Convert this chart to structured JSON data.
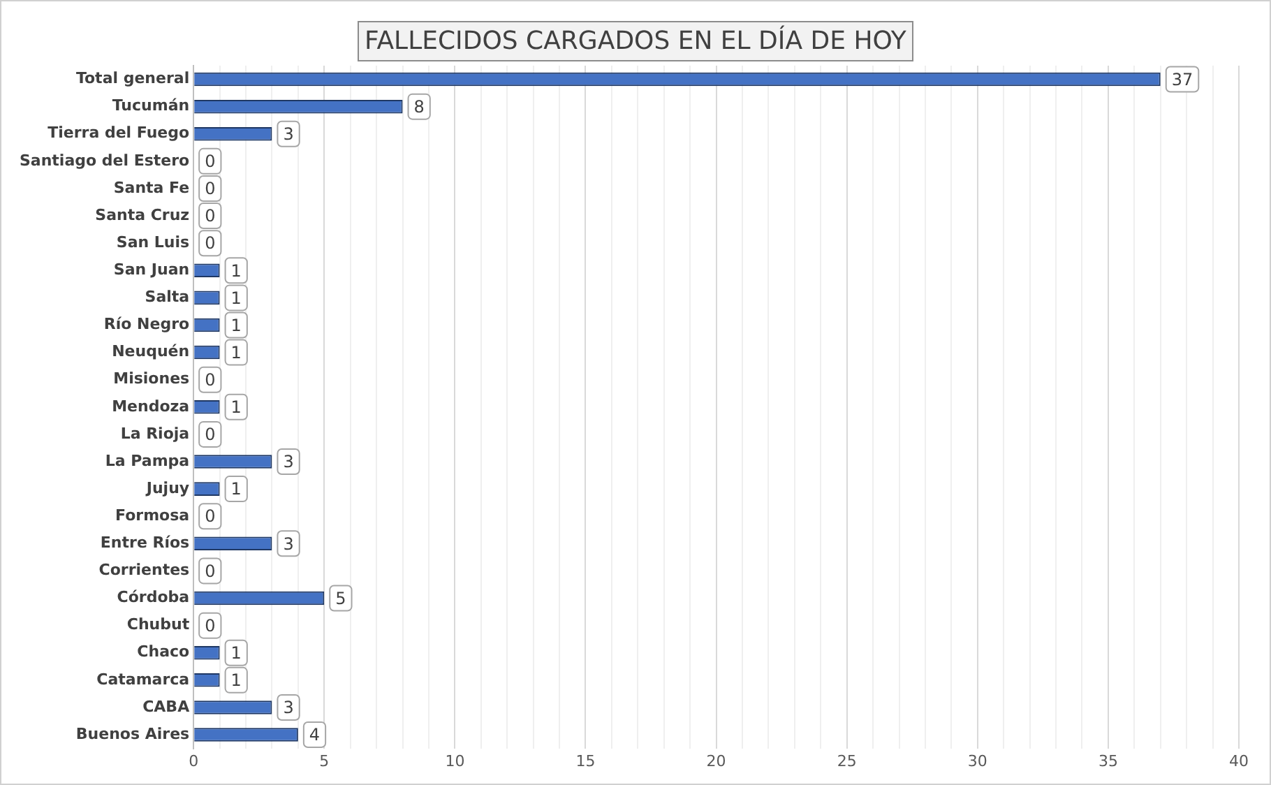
{
  "chart_data": {
    "type": "bar",
    "orientation": "horizontal",
    "title": "FALLECIDOS CARGADOS EN EL DÍA DE HOY",
    "categories": [
      "Total general",
      "Tucumán",
      "Tierra del Fuego",
      "Santiago del Estero",
      "Santa Fe",
      "Santa Cruz",
      "San Luis",
      "San Juan",
      "Salta",
      "Río Negro",
      "Neuquén",
      "Misiones",
      "Mendoza",
      "La Rioja",
      "La Pampa",
      "Jujuy",
      "Formosa",
      "Entre Ríos",
      "Corrientes",
      "Córdoba",
      "Chubut",
      "Chaco",
      "Catamarca",
      "CABA",
      "Buenos Aires"
    ],
    "values": [
      37,
      8,
      3,
      0,
      0,
      0,
      0,
      1,
      1,
      1,
      1,
      0,
      1,
      0,
      3,
      1,
      0,
      3,
      0,
      5,
      0,
      1,
      1,
      3,
      4
    ],
    "color": "#4472c4",
    "xlim": [
      0,
      40
    ],
    "xticks": [
      0,
      {
        "value": 1,
        "label": null
      },
      {
        "value": 2,
        "label": null
      },
      {
        "value": 3,
        "label": null
      },
      {
        "value": 4,
        "label": null
      },
      5,
      {
        "value": 6,
        "label": null
      },
      {
        "value": 7,
        "label": null
      },
      {
        "value": 8,
        "label": null
      },
      {
        "value": 9,
        "label": null
      },
      10,
      {
        "value": 11,
        "label": null
      },
      {
        "value": 12,
        "label": null
      },
      {
        "value": 13,
        "label": null
      },
      {
        "value": 14,
        "label": null
      },
      15,
      {
        "value": 16,
        "label": null
      },
      {
        "value": 17,
        "label": null
      },
      {
        "value": 18,
        "label": null
      },
      {
        "value": 19,
        "label": null
      },
      20,
      {
        "value": 21,
        "label": null
      },
      {
        "value": 22,
        "label": null
      },
      {
        "value": 23,
        "label": null
      },
      {
        "value": 24,
        "label": null
      },
      25,
      {
        "value": 26,
        "label": null
      },
      {
        "value": 27,
        "label": null
      },
      {
        "value": 28,
        "label": null
      },
      {
        "value": 29,
        "label": null
      },
      30,
      {
        "value": 31,
        "label": null
      },
      {
        "value": 32,
        "label": null
      },
      {
        "value": 33,
        "label": null
      },
      {
        "value": 34,
        "label": null
      },
      35,
      {
        "value": 36,
        "label": null
      },
      {
        "value": 37,
        "label": null
      },
      {
        "value": 38,
        "label": null
      },
      {
        "value": 39,
        "label": null
      },
      40
    ],
    "grid": "x",
    "data_labels": true,
    "legend": false
  }
}
